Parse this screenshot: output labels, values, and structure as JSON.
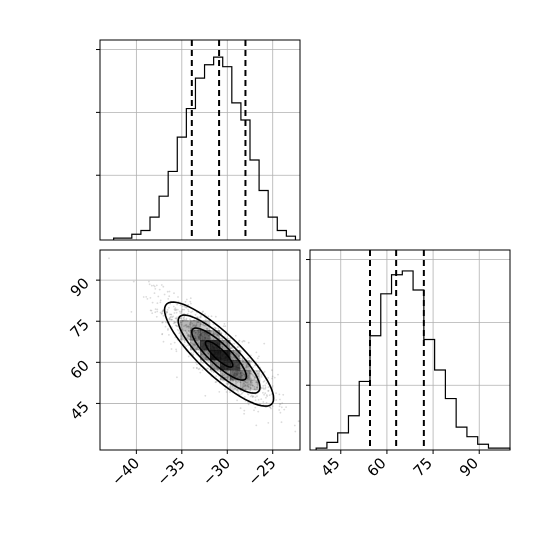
{
  "chart_data": [
    {
      "type": "histogram",
      "panel": "marginal-x",
      "xlim": [
        -44,
        -22
      ],
      "ylim": [
        0,
        1.05
      ],
      "bins": [
        -42.5,
        -41.5,
        -40.5,
        -39.5,
        -38.5,
        -37.5,
        -36.5,
        -35.5,
        -34.5,
        -33.5,
        -32.5,
        -31.5,
        -30.5,
        -29.5,
        -28.5,
        -27.5,
        -26.5,
        -25.5,
        -24.5,
        -23.5,
        -22.5
      ],
      "counts": [
        0.01,
        0.01,
        0.03,
        0.05,
        0.12,
        0.23,
        0.36,
        0.54,
        0.69,
        0.85,
        0.92,
        0.96,
        0.91,
        0.72,
        0.63,
        0.42,
        0.26,
        0.12,
        0.05,
        0.02
      ],
      "quantiles": [
        -33.9,
        -30.9,
        -28.0
      ],
      "grid": true
    },
    {
      "type": "histogram",
      "panel": "marginal-y",
      "xlim": [
        35,
        100
      ],
      "ylim": [
        0,
        1.05
      ],
      "bins": [
        37,
        40.5,
        44,
        47.5,
        51,
        54.5,
        58,
        61.5,
        65,
        68.5,
        72,
        75.5,
        79,
        82.5,
        86,
        89.5,
        93,
        96.5,
        100
      ],
      "counts": [
        0.01,
        0.04,
        0.09,
        0.18,
        0.36,
        0.6,
        0.82,
        0.92,
        0.94,
        0.84,
        0.58,
        0.42,
        0.27,
        0.12,
        0.07,
        0.03,
        0.01,
        0.01
      ],
      "quantiles": [
        54.5,
        63.0,
        72.0
      ],
      "grid": true
    },
    {
      "type": "heatmap",
      "panel": "joint",
      "xlim": [
        -44,
        -22
      ],
      "ylim": [
        28,
        101
      ],
      "x_ticks": [
        -40,
        -35,
        -30,
        -25
      ],
      "x_tick_labels": [
        "−40",
        "−35",
        "−30",
        "−25"
      ],
      "y_ticks": [
        45,
        60,
        75,
        90
      ],
      "y_tick_labels": [
        "45",
        "60",
        "75",
        "90"
      ],
      "mean": [
        -30.9,
        63.0
      ],
      "std": [
        3.0,
        9.5
      ],
      "correlation": -0.85,
      "contour_levels_sigma": [
        0.5,
        1.0,
        1.5,
        2.0
      ],
      "grid": true
    }
  ],
  "colors": {
    "axes": "#000000",
    "grid": "#b0b0b0",
    "density": "#000000",
    "points": "#7f7f7f"
  },
  "marginal_y_ticks": {
    "ticks": [
      45,
      60,
      75,
      90
    ],
    "tick_labels": [
      "45",
      "60",
      "75",
      "90"
    ]
  }
}
